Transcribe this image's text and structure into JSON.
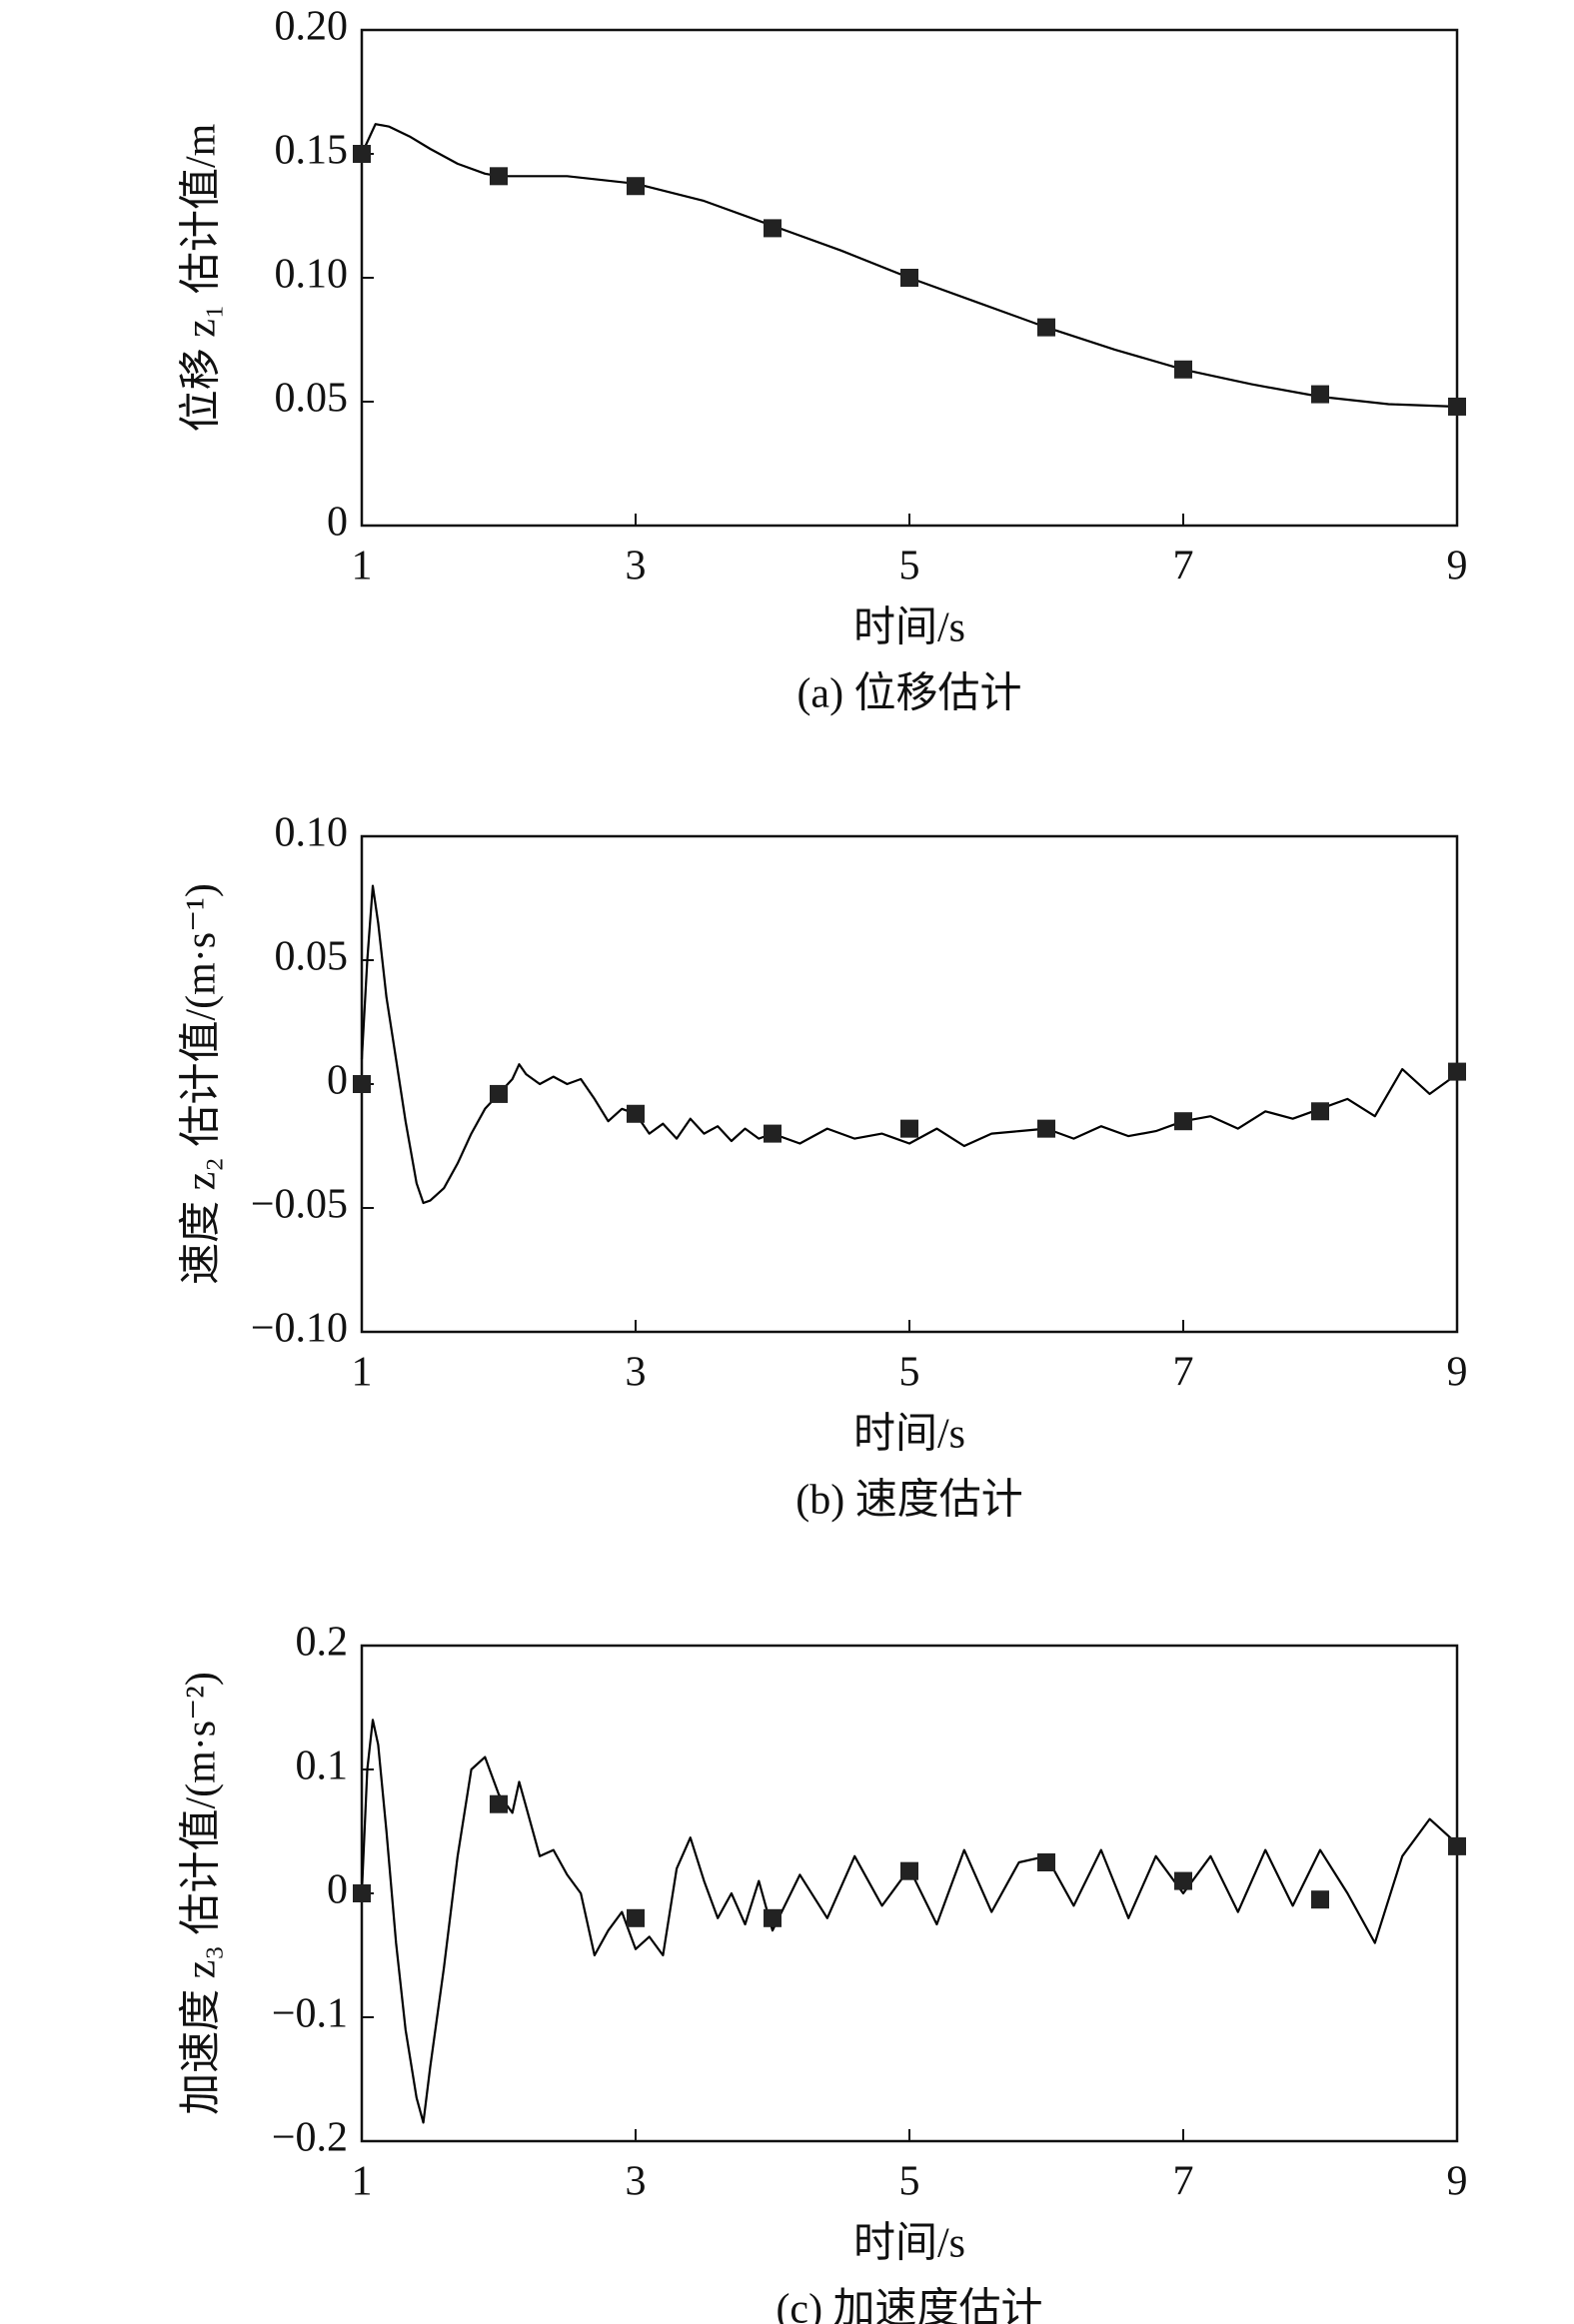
{
  "chart_data": [
    {
      "type": "line",
      "ylabel": "位移 z₁ 估计值/m",
      "xlabel": "时间/s",
      "caption": "(a) 位移估计",
      "xlim": [
        1,
        9
      ],
      "xticks": [
        1,
        3,
        5,
        7,
        9
      ],
      "ylim": [
        0,
        0.2
      ],
      "yticks": [
        0,
        0.05,
        {
          "value": 0.1,
          "label": "0.10"
        },
        0.15,
        {
          "value": 0.2,
          "label": "0.20"
        }
      ],
      "series": [
        {
          "color": "#000000",
          "marker": "none",
          "x": [
            1,
            1.1,
            1.2,
            1.35,
            1.5,
            1.7,
            1.9,
            2,
            2.5,
            3,
            3.5,
            4,
            4.5,
            5,
            5.5,
            6,
            6.5,
            7,
            7.5,
            8,
            8.5,
            9
          ],
          "values": [
            0.15,
            0.162,
            0.161,
            0.157,
            0.152,
            0.146,
            0.142,
            0.141,
            0.141,
            0.138,
            0.131,
            0.121,
            0.111,
            0.1,
            0.09,
            0.08,
            0.071,
            0.063,
            0.057,
            0.052,
            0.049,
            0.048
          ]
        },
        {
          "color": "#222222",
          "marker": "square",
          "x": [
            1,
            2,
            3,
            4,
            5,
            6,
            7,
            8,
            9
          ],
          "values": [
            0.15,
            0.141,
            0.137,
            0.12,
            0.1,
            0.08,
            0.063,
            0.053,
            0.048
          ]
        }
      ]
    },
    {
      "type": "line",
      "ylabel": "速度 z₂ 估计值/(m·s⁻¹)",
      "xlabel": "时间/s",
      "caption": "(b) 速度估计",
      "xlim": [
        1,
        9
      ],
      "xticks": [
        1,
        3,
        5,
        7,
        9
      ],
      "ylim": [
        -0.1,
        0.1
      ],
      "yticks": [
        {
          "value": -0.1,
          "label": "−0.10"
        },
        {
          "value": -0.05,
          "label": "−0.05"
        },
        0,
        0.05,
        {
          "value": 0.1,
          "label": "0.10"
        }
      ],
      "series": [
        {
          "color": "#000000",
          "marker": "none",
          "x": [
            1,
            1.04,
            1.08,
            1.12,
            1.18,
            1.25,
            1.32,
            1.4,
            1.45,
            1.5,
            1.6,
            1.7,
            1.8,
            1.9,
            2,
            2.1,
            2.15,
            2.2,
            2.3,
            2.4,
            2.5,
            2.6,
            2.7,
            2.8,
            2.9,
            3,
            3.1,
            3.2,
            3.3,
            3.4,
            3.5,
            3.6,
            3.7,
            3.8,
            3.9,
            4,
            4.2,
            4.4,
            4.6,
            4.8,
            5,
            5.2,
            5.4,
            5.6,
            5.8,
            6,
            6.2,
            6.4,
            6.6,
            6.8,
            7,
            7.2,
            7.4,
            7.6,
            7.8,
            8,
            8.2,
            8.4,
            8.6,
            8.8,
            9
          ],
          "values": [
            0.01,
            0.05,
            0.08,
            0.065,
            0.035,
            0.01,
            -0.015,
            -0.04,
            -0.048,
            -0.047,
            -0.042,
            -0.032,
            -0.02,
            -0.01,
            -0.004,
            0.002,
            0.008,
            0.004,
            0.0,
            0.003,
            0.0,
            0.002,
            -0.006,
            -0.015,
            -0.01,
            -0.012,
            -0.02,
            -0.016,
            -0.022,
            -0.014,
            -0.02,
            -0.017,
            -0.023,
            -0.018,
            -0.022,
            -0.02,
            -0.024,
            -0.018,
            -0.022,
            -0.02,
            -0.024,
            -0.018,
            -0.025,
            -0.02,
            -0.019,
            -0.018,
            -0.022,
            -0.017,
            -0.021,
            -0.019,
            -0.015,
            -0.013,
            -0.018,
            -0.011,
            -0.014,
            -0.01,
            -0.006,
            -0.013,
            0.006,
            -0.004,
            0.004
          ]
        },
        {
          "color": "#222222",
          "marker": "square",
          "x": [
            1,
            2,
            3,
            4,
            5,
            6,
            7,
            8,
            9
          ],
          "values": [
            0,
            -0.004,
            -0.012,
            -0.02,
            -0.018,
            -0.018,
            -0.015,
            -0.011,
            0.005
          ]
        }
      ]
    },
    {
      "type": "line",
      "ylabel": "加速度 z₃ 估计值/(m·s⁻²)",
      "xlabel": "时间/s",
      "caption": "(c) 加速度估计",
      "xlim": [
        1,
        9
      ],
      "xticks": [
        1,
        3,
        5,
        7,
        9
      ],
      "ylim": [
        -0.2,
        0.2
      ],
      "yticks": [
        {
          "value": -0.2,
          "label": "−0.2"
        },
        {
          "value": -0.1,
          "label": "−0.1"
        },
        0,
        0.1,
        0.2
      ],
      "series": [
        {
          "color": "#000000",
          "marker": "none",
          "x": [
            1,
            1.04,
            1.08,
            1.12,
            1.18,
            1.25,
            1.32,
            1.4,
            1.45,
            1.5,
            1.6,
            1.7,
            1.8,
            1.9,
            2,
            2.1,
            2.15,
            2.2,
            2.3,
            2.4,
            2.5,
            2.6,
            2.7,
            2.8,
            2.9,
            3,
            3.1,
            3.2,
            3.3,
            3.4,
            3.5,
            3.6,
            3.7,
            3.8,
            3.9,
            4,
            4.2,
            4.4,
            4.6,
            4.8,
            5,
            5.2,
            5.4,
            5.6,
            5.8,
            6,
            6.2,
            6.4,
            6.6,
            6.8,
            7,
            7.2,
            7.4,
            7.6,
            7.8,
            8,
            8.2,
            8.4,
            8.6,
            8.8,
            9
          ],
          "values": [
            0,
            0.1,
            0.14,
            0.12,
            0.05,
            -0.04,
            -0.11,
            -0.165,
            -0.185,
            -0.14,
            -0.06,
            0.03,
            0.1,
            0.11,
            0.08,
            0.065,
            0.09,
            0.07,
            0.03,
            0.035,
            0.015,
            0.0,
            -0.05,
            -0.03,
            -0.015,
            -0.045,
            -0.035,
            -0.05,
            0.02,
            0.045,
            0.01,
            -0.02,
            0.0,
            -0.025,
            0.01,
            -0.03,
            0.015,
            -0.02,
            0.03,
            -0.01,
            0.02,
            -0.025,
            0.035,
            -0.015,
            0.025,
            0.03,
            -0.01,
            0.035,
            -0.02,
            0.03,
            0.0,
            0.03,
            -0.015,
            0.035,
            -0.01,
            0.035,
            0.0,
            -0.04,
            0.03,
            0.06,
            0.04
          ]
        },
        {
          "color": "#222222",
          "marker": "square",
          "x": [
            1,
            2,
            3,
            4,
            5,
            6,
            7,
            8,
            9
          ],
          "values": [
            0,
            0.072,
            -0.02,
            -0.02,
            0.018,
            0.025,
            0.01,
            -0.005,
            0.038
          ]
        }
      ]
    }
  ]
}
